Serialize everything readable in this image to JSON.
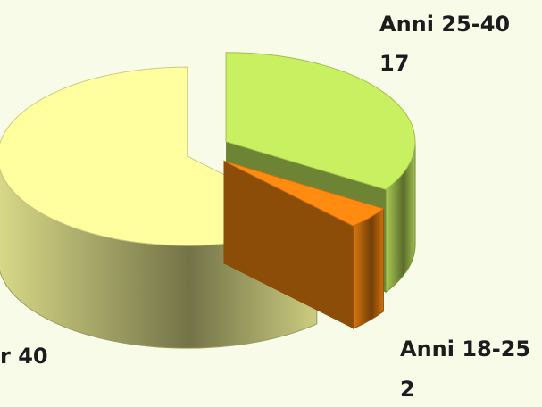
{
  "chart_data": {
    "type": "pie3d",
    "categories": [
      "Anni 25-40",
      "Anni 18-25",
      "r 40"
    ],
    "values": [
      17,
      2,
      31
    ],
    "colors": [
      "#c8f060",
      "#ff8c10",
      "#ffffa0"
    ]
  }
}
